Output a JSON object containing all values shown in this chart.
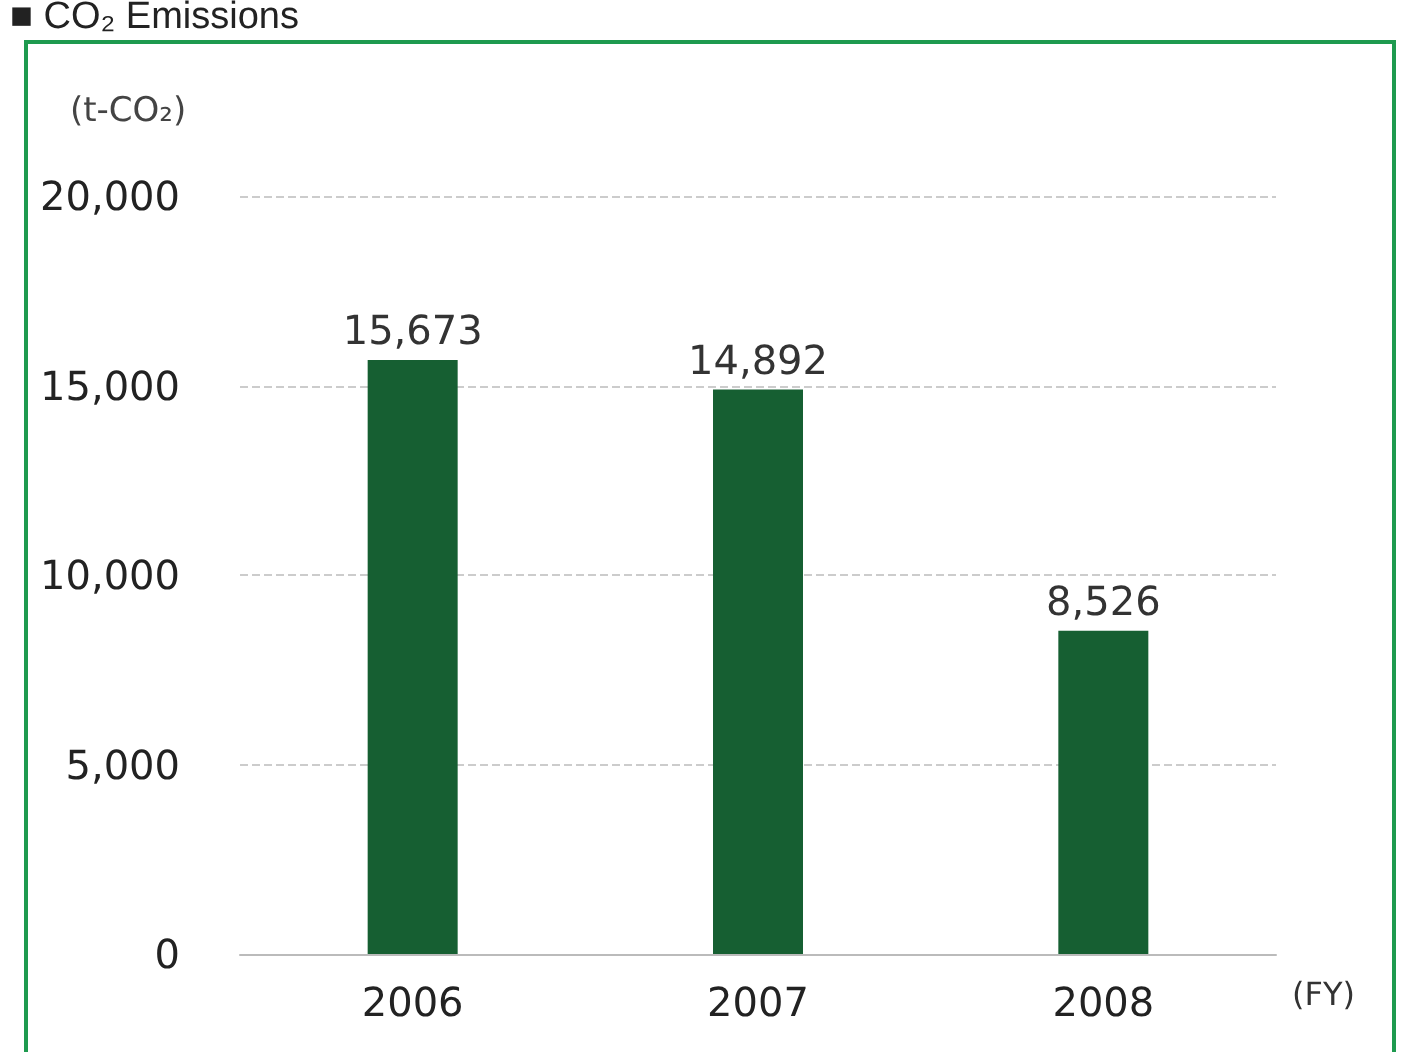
{
  "chart_data": {
    "type": "bar",
    "title": "■ CO₂ Emissions",
    "ylabel": "(t-CO₂)",
    "xlabel": "(FY)",
    "categories": [
      "2006",
      "2007",
      "2008"
    ],
    "values": [
      15673,
      14892,
      8526
    ],
    "color": "#165f32",
    "value_labels": [
      "15,673",
      "14,892",
      "8,526"
    ],
    "ylim": [
      0,
      20000
    ],
    "yticks": [
      0,
      {
        "value": 5000,
        "label": "5,000"
      },
      {
        "value": 10000,
        "label": "10,000"
      },
      {
        "value": 15000,
        "label": "15,000"
      },
      {
        "value": 20000,
        "label": "20,000"
      }
    ],
    "grid": "y"
  }
}
